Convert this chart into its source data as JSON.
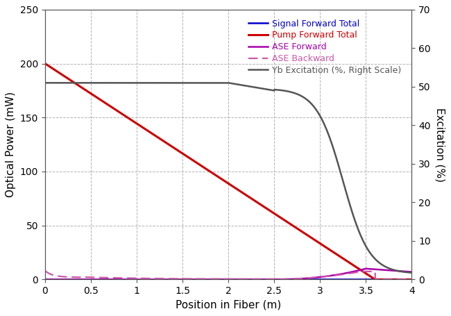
{
  "xlabel": "Position in Fiber (m)",
  "ylabel_left": "Optical Power (mW)",
  "ylabel_right": "Excitation (%)",
  "xlim": [
    0,
    4
  ],
  "ylim_left": [
    0,
    250
  ],
  "ylim_right": [
    0,
    70
  ],
  "yticks_left": [
    0,
    50,
    100,
    150,
    200,
    250
  ],
  "yticks_right": [
    0,
    10,
    20,
    30,
    40,
    50,
    60,
    70
  ],
  "xticks": [
    0,
    0.5,
    1,
    1.5,
    2,
    2.5,
    3,
    3.5,
    4
  ],
  "legend_labels": [
    "Signal Forward Total",
    "Pump Forward Total",
    "ASE Forward",
    "ASE Backward",
    "Yb Excitation (%, Right Scale)"
  ],
  "signal_color": "#0000cc",
  "pump_color": "#cc0000",
  "ase_fwd_color": "#aa00aa",
  "ase_bwd_color": "#cc55aa",
  "yb_color": "#555555",
  "background_color": "#ffffff",
  "grid_color": "#aaaaaa"
}
